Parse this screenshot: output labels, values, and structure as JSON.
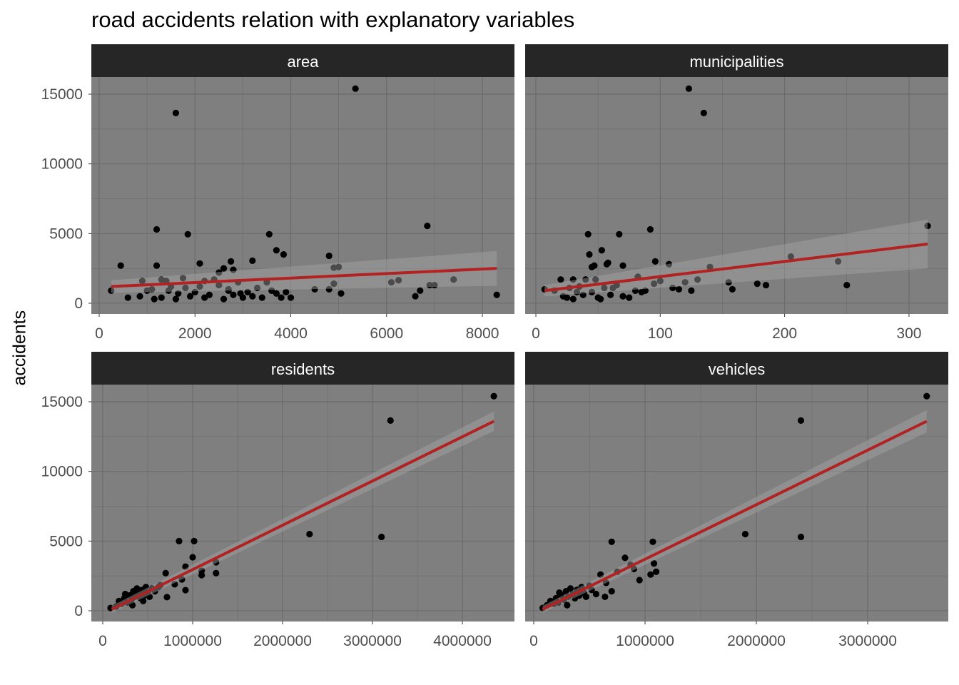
{
  "chart_data": {
    "type": "scatter",
    "title": "road accidents relation with explanatory variables",
    "ylabel": "accidents",
    "ylim": [
      -770,
      16230
    ],
    "yticks": [
      0,
      5000,
      10000,
      15000
    ],
    "grid": true,
    "colors": {
      "panel": "#7f7f7f",
      "grid": "#6b6b6b",
      "strip": "#262626",
      "strip_text": "#ffffff",
      "point": "#000000",
      "line": "#b22222",
      "ribbon": "#a6a6a6",
      "tick_text": "#4d4d4d"
    },
    "facets": [
      {
        "name": "area",
        "xlim": [
          -164,
          8670
        ],
        "xticks": [
          0,
          2000,
          4000,
          6000,
          8000
        ],
        "fit": {
          "x": [
            250,
            8300
          ],
          "y": [
            1200,
            2500
          ],
          "lo": [
            750,
            1250
          ],
          "hi": [
            1650,
            3750
          ]
        },
        "points": [
          [
            5350,
            15400
          ],
          [
            1600,
            13650
          ],
          [
            6850,
            5550
          ],
          [
            1200,
            5300
          ],
          [
            1850,
            4950
          ],
          [
            3550,
            4950
          ],
          [
            3700,
            3800
          ],
          [
            3850,
            3500
          ],
          [
            4800,
            3400
          ],
          [
            5000,
            2600
          ],
          [
            3200,
            3050
          ],
          [
            2750,
            3000
          ],
          [
            2100,
            2850
          ],
          [
            1200,
            2700
          ],
          [
            450,
            2700
          ],
          [
            2600,
            2500
          ],
          [
            2800,
            2400
          ],
          [
            2500,
            2200
          ],
          [
            4900,
            2550
          ],
          [
            250,
            900
          ],
          [
            600,
            400
          ],
          [
            850,
            500
          ],
          [
            900,
            1600
          ],
          [
            1000,
            900
          ],
          [
            1150,
            300
          ],
          [
            1300,
            400
          ],
          [
            1400,
            1600
          ],
          [
            1450,
            900
          ],
          [
            1600,
            300
          ],
          [
            1650,
            700
          ],
          [
            1750,
            1800
          ],
          [
            1800,
            1100
          ],
          [
            1900,
            500
          ],
          [
            2000,
            800
          ],
          [
            2100,
            1200
          ],
          [
            2200,
            400
          ],
          [
            2300,
            600
          ],
          [
            2400,
            1700
          ],
          [
            2500,
            1300
          ],
          [
            2600,
            300
          ],
          [
            2700,
            900
          ],
          [
            2800,
            600
          ],
          [
            2900,
            1500
          ],
          [
            3000,
            400
          ],
          [
            3100,
            800
          ],
          [
            3200,
            500
          ],
          [
            3300,
            1100
          ],
          [
            3400,
            400
          ],
          [
            3500,
            1500
          ],
          [
            3600,
            900
          ],
          [
            3700,
            700
          ],
          [
            3800,
            400
          ],
          [
            3900,
            800
          ],
          [
            4000,
            400
          ],
          [
            4500,
            1000
          ],
          [
            4800,
            1000
          ],
          [
            5050,
            700
          ],
          [
            4900,
            1400
          ],
          [
            6100,
            1500
          ],
          [
            6250,
            1650
          ],
          [
            6600,
            500
          ],
          [
            6700,
            900
          ],
          [
            6900,
            1300
          ],
          [
            7000,
            1300
          ],
          [
            7400,
            1700
          ],
          [
            8300,
            600
          ],
          [
            2200,
            1600
          ],
          [
            1300,
            1700
          ],
          [
            2700,
            1000
          ],
          [
            1100,
            1000
          ],
          [
            1500,
            1200
          ],
          [
            2950,
            700
          ]
        ]
      },
      {
        "name": "municipalities",
        "xlim": [
          -8.6,
          331.6
        ],
        "xticks": [
          0,
          100,
          200,
          300
        ],
        "fit": {
          "x": [
            7,
            315
          ],
          "y": [
            900,
            4250
          ],
          "lo": [
            500,
            2500
          ],
          "hi": [
            1300,
            6000
          ]
        },
        "points": [
          [
            123,
            15400
          ],
          [
            135,
            13650
          ],
          [
            315,
            5550
          ],
          [
            92,
            5300
          ],
          [
            42,
            4950
          ],
          [
            67,
            4950
          ],
          [
            43,
            3500
          ],
          [
            53,
            3800
          ],
          [
            47,
            2700
          ],
          [
            45,
            2600
          ],
          [
            57,
            2800
          ],
          [
            58,
            2900
          ],
          [
            96,
            3000
          ],
          [
            107,
            2800
          ],
          [
            140,
            2600
          ],
          [
            205,
            3350
          ],
          [
            243,
            3000
          ],
          [
            250,
            1300
          ],
          [
            100,
            1600
          ],
          [
            120,
            1500
          ],
          [
            70,
            2700
          ],
          [
            178,
            1400
          ],
          [
            185,
            1300
          ],
          [
            155,
            1500
          ],
          [
            158,
            1000
          ],
          [
            88,
            900
          ],
          [
            7,
            1000
          ],
          [
            15,
            900
          ],
          [
            20,
            1700
          ],
          [
            25,
            400
          ],
          [
            30,
            1700
          ],
          [
            35,
            1200
          ],
          [
            38,
            600
          ],
          [
            40,
            1700
          ],
          [
            45,
            800
          ],
          [
            50,
            400
          ],
          [
            55,
            1100
          ],
          [
            60,
            600
          ],
          [
            65,
            1300
          ],
          [
            70,
            500
          ],
          [
            75,
            400
          ],
          [
            80,
            900
          ],
          [
            85,
            800
          ],
          [
            95,
            1400
          ],
          [
            110,
            1100
          ],
          [
            115,
            1000
          ],
          [
            125,
            900
          ],
          [
            130,
            1700
          ],
          [
            82,
            1900
          ],
          [
            30,
            300
          ],
          [
            22,
            500
          ],
          [
            48,
            1700
          ],
          [
            52,
            300
          ],
          [
            62,
            1100
          ],
          [
            33,
            800
          ],
          [
            27,
            1100
          ]
        ]
      },
      {
        "name": "residents",
        "xlim": [
          -127000,
          4579000
        ],
        "xticks": [
          0,
          1000000,
          2000000,
          3000000,
          4000000
        ],
        "fit": {
          "x": [
            100000,
            4350000
          ],
          "y": [
            100,
            13600
          ],
          "lo": [
            -150,
            12900
          ],
          "hi": [
            350,
            14300
          ]
        },
        "points": [
          [
            4350000,
            15400
          ],
          [
            3200000,
            13650
          ],
          [
            2300000,
            5500
          ],
          [
            3100000,
            5300
          ],
          [
            849000,
            5000
          ],
          [
            1016000,
            5000
          ],
          [
            1000000,
            3840
          ],
          [
            1260000,
            3480
          ],
          [
            1260000,
            2700
          ],
          [
            1100000,
            2870
          ],
          [
            1100000,
            2560
          ],
          [
            920000,
            3170
          ],
          [
            700000,
            2700
          ],
          [
            800000,
            1900
          ],
          [
            920000,
            1480
          ],
          [
            714000,
            980
          ],
          [
            880000,
            2250
          ],
          [
            87000,
            200
          ],
          [
            150000,
            300
          ],
          [
            180000,
            700
          ],
          [
            210000,
            500
          ],
          [
            240000,
            900
          ],
          [
            270000,
            600
          ],
          [
            300000,
            1100
          ],
          [
            320000,
            800
          ],
          [
            340000,
            1400
          ],
          [
            360000,
            1000
          ],
          [
            380000,
            1600
          ],
          [
            400000,
            1200
          ],
          [
            420000,
            900
          ],
          [
            440000,
            1500
          ],
          [
            460000,
            1100
          ],
          [
            480000,
            1700
          ],
          [
            500000,
            1300
          ],
          [
            520000,
            1000
          ],
          [
            550000,
            1600
          ],
          [
            580000,
            1400
          ],
          [
            620000,
            1700
          ],
          [
            640000,
            1840
          ],
          [
            250000,
            1200
          ],
          [
            330000,
            400
          ],
          [
            450000,
            700
          ]
        ]
      },
      {
        "name": "vehicles",
        "xlim": [
          -77000,
          3724000
        ],
        "xticks": [
          0,
          1000000,
          2000000,
          3000000
        ],
        "fit": {
          "x": [
            80000,
            3530000
          ],
          "y": [
            100,
            13600
          ],
          "lo": [
            -150,
            12800
          ],
          "hi": [
            350,
            14400
          ]
        },
        "points": [
          [
            3530000,
            15400
          ],
          [
            2400000,
            13650
          ],
          [
            1900000,
            5500
          ],
          [
            2400000,
            5300
          ],
          [
            700000,
            4950
          ],
          [
            1070000,
            4950
          ],
          [
            1080000,
            3400
          ],
          [
            1100000,
            2800
          ],
          [
            820000,
            3800
          ],
          [
            870000,
            3300
          ],
          [
            900000,
            3000
          ],
          [
            750000,
            2800
          ],
          [
            700000,
            1400
          ],
          [
            600000,
            2600
          ],
          [
            500000,
            1800
          ],
          [
            1050000,
            2600
          ],
          [
            950000,
            2200
          ],
          [
            80000,
            200
          ],
          [
            120000,
            400
          ],
          [
            150000,
            700
          ],
          [
            180000,
            500
          ],
          [
            200000,
            900
          ],
          [
            220000,
            600
          ],
          [
            250000,
            1100
          ],
          [
            270000,
            800
          ],
          [
            290000,
            1400
          ],
          [
            310000,
            1000
          ],
          [
            330000,
            1600
          ],
          [
            350000,
            1200
          ],
          [
            370000,
            900
          ],
          [
            390000,
            1500
          ],
          [
            410000,
            1100
          ],
          [
            430000,
            1700
          ],
          [
            450000,
            1300
          ],
          [
            470000,
            1000
          ],
          [
            520000,
            1500
          ],
          [
            560000,
            1200
          ],
          [
            650000,
            2000
          ],
          [
            640000,
            1000
          ],
          [
            230000,
            1300
          ],
          [
            300000,
            400
          ]
        ]
      }
    ]
  }
}
